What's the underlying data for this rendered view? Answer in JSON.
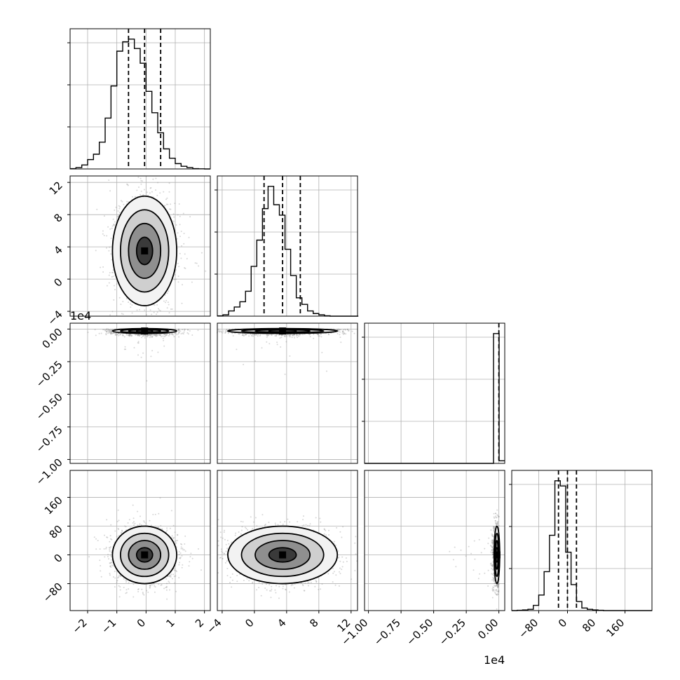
{
  "chart_data": {
    "type": "corner",
    "parameters": 4,
    "grid": true,
    "colors": {
      "line": "#000000",
      "grid": "#b0b0b0",
      "scatter": "#8c8c8c",
      "density_light": "#ffffff",
      "density_dark": "#000000"
    },
    "axes": [
      {
        "range": [
          -2.6,
          2.2
        ],
        "ticks": [
          -2,
          -1,
          0,
          1,
          2
        ],
        "tick_labels": [
          "−2",
          "−1",
          "0",
          "1",
          "2"
        ],
        "quantiles": [
          -0.6,
          -0.05,
          0.5
        ]
      },
      {
        "range": [
          -4.6,
          12.8
        ],
        "ticks": [
          -4,
          0,
          4,
          8,
          12
        ],
        "tick_labels": [
          "−4",
          "0",
          "4",
          "8",
          "12"
        ],
        "quantiles": [
          1.2,
          3.5,
          5.7
        ]
      },
      {
        "range": [
          -10300,
          450
        ],
        "ticks": [
          -10000,
          -7500,
          -5000,
          -2500,
          0
        ],
        "tick_labels": [
          "−1.00",
          "−0.75",
          "−0.50",
          "−0.25",
          "0.00"
        ],
        "offset_text": "1e4",
        "quantiles": [
          0
        ]
      },
      {
        "range": [
          -155,
          235
        ],
        "ticks": [
          -80,
          0,
          80,
          160
        ],
        "tick_labels": [
          "−80",
          "0",
          "80",
          "160"
        ],
        "quantiles": [
          -25,
          0,
          25
        ]
      }
    ],
    "histograms": [
      {
        "bin_start": -2.6,
        "bin_width": 0.2,
        "counts": [
          0.2,
          1,
          3,
          7,
          11,
          20,
          38,
          62,
          88,
          95,
          97,
          90,
          79,
          58,
          42,
          27,
          15,
          8,
          4,
          2,
          1,
          0.2,
          0.1,
          0
        ]
      },
      {
        "bin_start": -4.6,
        "bin_width": 0.7,
        "counts": [
          0.2,
          1,
          4,
          7,
          11,
          19,
          38,
          58,
          82,
          99,
          85,
          77,
          51,
          31,
          14,
          9,
          4,
          2,
          1,
          0.3,
          0,
          0,
          0,
          0,
          0
        ]
      },
      {
        "bin_start": -10300,
        "bin_width": 430,
        "counts": [
          0,
          0,
          0,
          0,
          0,
          0,
          0,
          0,
          0,
          0,
          0,
          0,
          0,
          0,
          0,
          0,
          0,
          0,
          0,
          0,
          0,
          0,
          0,
          100,
          2
        ]
      },
      {
        "bin_start": -155,
        "bin_width": 15,
        "counts": [
          0,
          0.2,
          0.5,
          1,
          4,
          12,
          30,
          58,
          100,
          96,
          45,
          20,
          7,
          2,
          1,
          0.5,
          0.2,
          0,
          0,
          0,
          0,
          0,
          0,
          0,
          0,
          0
        ]
      }
    ],
    "sample_distribution": {
      "means": [
        -0.05,
        3.5,
        -150,
        0
      ],
      "std": [
        0.55,
        3.4,
        600,
        40
      ]
    }
  }
}
